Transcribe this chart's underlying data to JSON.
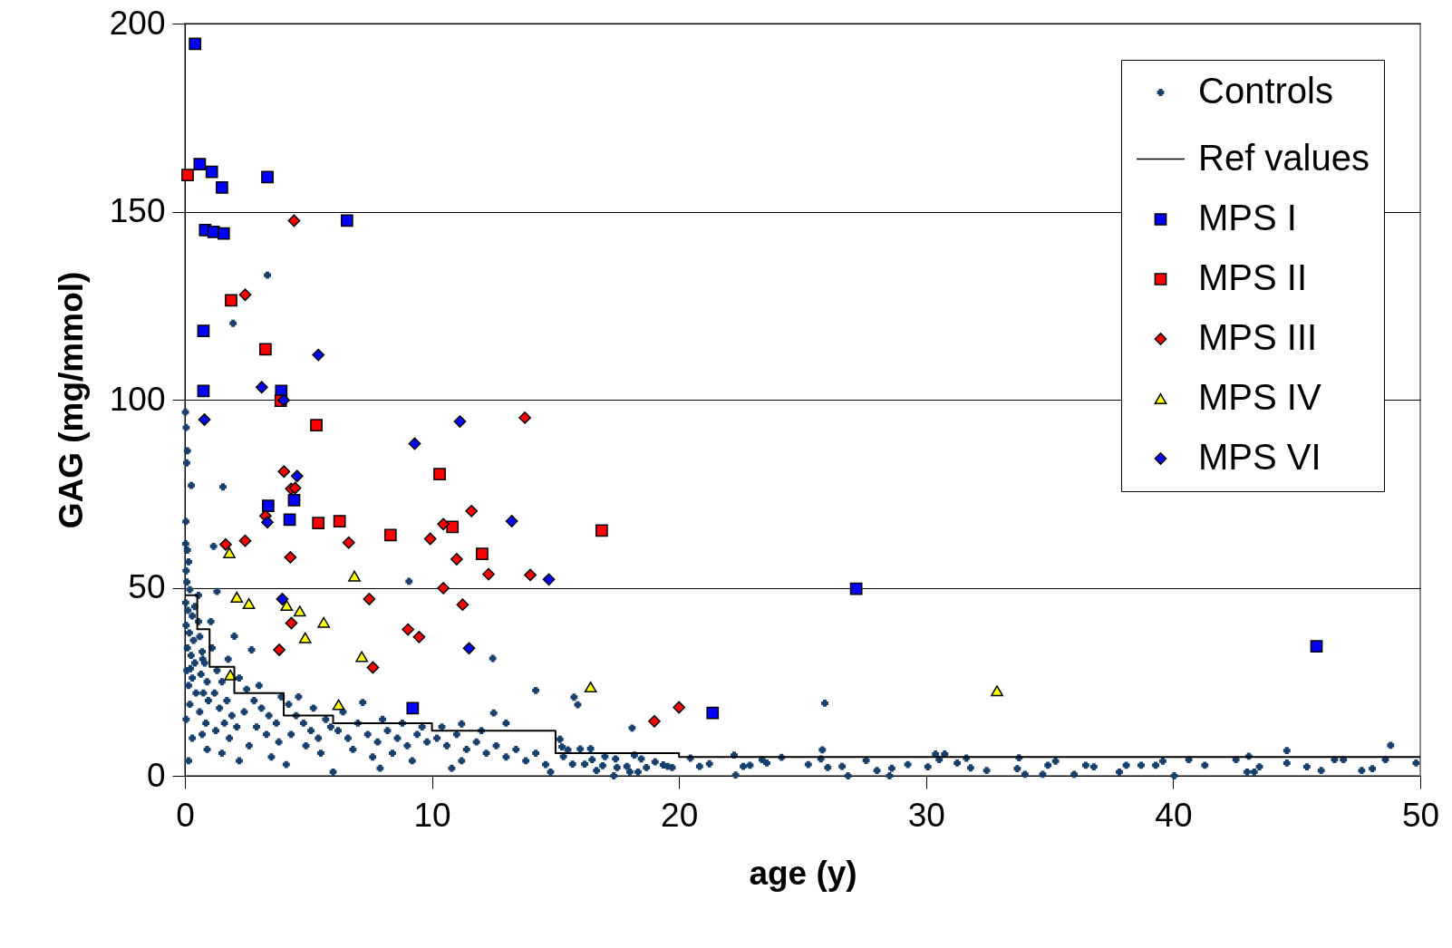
{
  "chart_data": {
    "type": "scatter",
    "xlabel": "age (y)",
    "ylabel": "GAG (mg/mmol)",
    "xlim": [
      0,
      50
    ],
    "ylim": [
      0,
      200
    ],
    "xticks": [
      0,
      10,
      20,
      30,
      40,
      50
    ],
    "yticks": [
      0,
      50,
      100,
      150,
      200
    ],
    "grid": "y",
    "legend": "top right",
    "series": [
      {
        "name": "Controls",
        "type": "scatter",
        "marker": "cross",
        "color": "#17406d",
        "x": [
          0.02,
          0.05,
          0.1,
          0.07,
          0.26,
          0.04,
          0.03,
          0.1,
          0.15,
          0.05,
          0.08,
          0.2,
          0.03,
          0.12,
          0.3,
          0.05,
          0.18,
          0.35,
          0.1,
          0.25,
          0.4,
          0.08,
          0.3,
          0.15,
          0.45,
          0.2,
          0.05,
          0.3,
          0.15,
          0.4,
          0.22,
          0.55,
          0.6,
          0.7,
          0.8,
          0.65,
          0.9,
          0.75,
          0.95,
          0.6,
          0.85,
          0.7,
          0.9,
          0.55,
          1.16,
          0.72,
          1.1,
          1.3,
          1.5,
          1.2,
          1.7,
          1.4,
          1.9,
          1.6,
          1.25,
          1.8,
          1.5,
          1.95,
          1.54,
          1.3,
          1.75,
          1.05,
          2.0,
          2.2,
          2.5,
          2.8,
          3.1,
          3.4,
          3.7,
          2.4,
          2.9,
          3.3,
          3.8,
          2.6,
          3.5,
          2.1,
          3.0,
          3.9,
          2.7,
          3.34,
          2.2,
          4.2,
          4.5,
          4.8,
          5.1,
          5.4,
          5.7,
          4.3,
          4.9,
          5.5,
          5.9,
          4.6,
          5.2,
          4.1,
          6.2,
          6.6,
          7.0,
          7.4,
          7.8,
          8.2,
          8.6,
          9.0,
          9.4,
          9.8,
          6.8,
          7.6,
          8.4,
          9.2,
          6.4,
          7.2,
          8.0,
          8.8,
          9.6,
          9.07,
          7.9,
          6.0,
          10.2,
          10.6,
          11.0,
          11.4,
          11.8,
          12.2,
          12.6,
          13.0,
          13.4,
          13.8,
          14.2,
          14.6,
          10.4,
          11.2,
          12.0,
          12.46,
          14.2,
          12.5,
          13.0,
          11.2,
          10.8,
          14.8,
          15.18,
          15.26,
          15.5,
          15.32,
          15.69,
          16.0,
          16.18,
          16.42,
          16.48,
          16.66,
          17.0,
          16.91,
          17.36,
          17.43,
          17.49,
          17.89,
          18.01,
          18.19,
          18.34,
          18.47,
          18.68,
          19.03,
          19.36,
          19.54,
          19.72,
          18.1,
          15.75,
          15.9,
          20.46,
          20.83,
          21.23,
          22.23,
          22.29,
          22.6,
          22.87,
          23.36,
          23.55,
          24.15,
          25.23,
          25.74,
          25.8,
          25.9,
          26.02,
          26.6,
          26.84,
          27.57,
          28.01,
          28.52,
          28.61,
          29.26,
          30.07,
          30.38,
          30.53,
          30.75,
          31.26,
          31.63,
          31.8,
          32.45,
          33.76,
          33.69,
          34.0,
          34.72,
          34.93,
          35.24,
          35.99,
          36.46,
          36.79,
          37.82,
          38.1,
          38.7,
          39.29,
          39.58,
          40.04,
          40.63,
          41.28,
          42.54,
          42.99,
          43.06,
          43.28,
          43.49,
          44.6,
          44.6,
          45.41,
          45.99,
          46.53,
          46.89,
          47.63,
          48.06,
          48.59,
          48.8,
          49.83
        ],
        "values": [
          96.7,
          92.6,
          86.4,
          83.2,
          77.2,
          67.6,
          61.7,
          60,
          56.9,
          54.5,
          51.5,
          49.5,
          46,
          44,
          42.5,
          40,
          38,
          36,
          34,
          32,
          30,
          28,
          26,
          24,
          22,
          19,
          15,
          10,
          4,
          45,
          28.5,
          41,
          37,
          33,
          30,
          27,
          25,
          22,
          20,
          17,
          14,
          11,
          7,
          48,
          61,
          31,
          34,
          28,
          25,
          22,
          20,
          18,
          16,
          14,
          12,
          10,
          6,
          120.3,
          76.8,
          49,
          31,
          41,
          37.1,
          26,
          23,
          20,
          18,
          16,
          14,
          17,
          13,
          11,
          9,
          8,
          5,
          13,
          24,
          21,
          33.5,
          133.1,
          4,
          19,
          16,
          14,
          12,
          10,
          15,
          11,
          8,
          6,
          13,
          21,
          18,
          3,
          12,
          10,
          14,
          11,
          9,
          12,
          10,
          8,
          11,
          9,
          7,
          5,
          6,
          4,
          17,
          19.5,
          15,
          14,
          13,
          51.7,
          2,
          1,
          10,
          8,
          11,
          7,
          9,
          6,
          8,
          5,
          7,
          4,
          6,
          3,
          13,
          4,
          12,
          31.2,
          22.7,
          16.7,
          14,
          13.8,
          2,
          1,
          9.7,
          7.7,
          6.9,
          5.1,
          3.1,
          7.1,
          3.1,
          7.2,
          4.3,
          1.4,
          5.1,
          2.7,
          0,
          4.5,
          2.2,
          2.5,
          1,
          5.5,
          1,
          4.5,
          2.2,
          3.7,
          2.9,
          2.5,
          2.2,
          12.7,
          20.9,
          18.9,
          4.7,
          2.5,
          3.2,
          5.5,
          0.2,
          2.5,
          2.8,
          4.3,
          3.4,
          4.9,
          3,
          4.5,
          6.9,
          19.3,
          2.2,
          2.5,
          0,
          4.1,
          1.4,
          0,
          2,
          3,
          2.4,
          5.8,
          4.3,
          5.8,
          3.4,
          4.7,
          2.1,
          1.4,
          4.8,
          1.9,
          0.4,
          0.4,
          2.8,
          3.9,
          0.4,
          2.8,
          2.4,
          1,
          2.8,
          2.8,
          2.8,
          3.9,
          0,
          4.3,
          2.8,
          4.3,
          1,
          5.2,
          1,
          2.4,
          6.7,
          3.4,
          2.4,
          1.4,
          4.3,
          4.3,
          1.4,
          1.9,
          4.3,
          8.1,
          3.4
        ]
      },
      {
        "name": "Ref values",
        "type": "step",
        "color": "#000000",
        "x": [
          0,
          0.5,
          1,
          2,
          4,
          6,
          10,
          15,
          20,
          50
        ],
        "values": [
          48,
          39,
          29,
          22,
          16,
          14,
          12,
          6,
          5,
          5
        ]
      },
      {
        "name": "MPS I",
        "type": "scatter",
        "marker": "square",
        "color": "#0000ff",
        "x": [
          0.41,
          0.6,
          1.09,
          1.5,
          3.34,
          0.82,
          1.16,
          1.57,
          6.56,
          0.75,
          0.75,
          3.9,
          4.42,
          3.37,
          4.24,
          9.22,
          27.17,
          21.36,
          45.8
        ],
        "values": [
          194.6,
          162.6,
          160.6,
          156.4,
          159.2,
          145.1,
          144.6,
          144.2,
          147.6,
          118.3,
          102.3,
          102.3,
          73.3,
          71.8,
          68.1,
          18,
          49.7,
          16.7,
          34.4
        ]
      },
      {
        "name": "MPS II",
        "type": "scatter",
        "marker": "square",
        "color": "#ff0000",
        "x": [
          0.11,
          1.87,
          3.26,
          5.32,
          10.31,
          5.4,
          6.26,
          8.32,
          10.83,
          12.03,
          16.87,
          3.88
        ],
        "values": [
          159.7,
          126.4,
          113.4,
          93.2,
          80.2,
          67.2,
          67.7,
          64,
          66.2,
          59,
          65.2,
          99.7
        ]
      },
      {
        "name": "MPS III",
        "type": "scatter",
        "marker": "diamond",
        "color": "#ff0000",
        "x": [
          4.42,
          2.44,
          4.01,
          4.3,
          4.46,
          3.26,
          1.65,
          2.44,
          6.63,
          9.93,
          10.46,
          11.6,
          11.0,
          12.29,
          13.98,
          13.76,
          4.27,
          10.46,
          7.46,
          4.31,
          11.24,
          9.03,
          9.48,
          3.82,
          7.61,
          19.0,
          20.0
        ],
        "values": [
          147.6,
          127.9,
          80.9,
          76.3,
          76.5,
          69.1,
          61.5,
          62.5,
          62,
          63,
          66.9,
          70.4,
          57.6,
          53.6,
          53.4,
          95.2,
          58.1,
          49.9,
          47,
          40.6,
          45.5,
          38.9,
          36.9,
          33.5,
          28.8,
          14.5,
          18.2
        ]
      },
      {
        "name": "MPS IV",
        "type": "scatter",
        "marker": "triangle",
        "color": "#ffff00",
        "x": [
          1.8,
          6.86,
          2.1,
          2.59,
          4.12,
          4.65,
          5.62,
          4.87,
          7.16,
          1.84,
          6.22,
          16.42,
          32.87
        ],
        "values": [
          59.3,
          53.1,
          47.5,
          45.8,
          45.3,
          43.8,
          40.8,
          36.7,
          31.7,
          26.8,
          18.9,
          23.6,
          22.6
        ]
      },
      {
        "name": "MPS VI",
        "type": "scatter",
        "marker": "diamond",
        "color": "#0000ff",
        "x": [
          0.79,
          3.11,
          4.0,
          5.4,
          11.13,
          9.3,
          4.54,
          3.34,
          13.23,
          14.73,
          3.94,
          11.5
        ],
        "values": [
          94.7,
          103.3,
          99.9,
          111.9,
          94.2,
          88.3,
          79.7,
          67.4,
          67.7,
          52.2,
          47,
          33.9
        ]
      }
    ]
  }
}
